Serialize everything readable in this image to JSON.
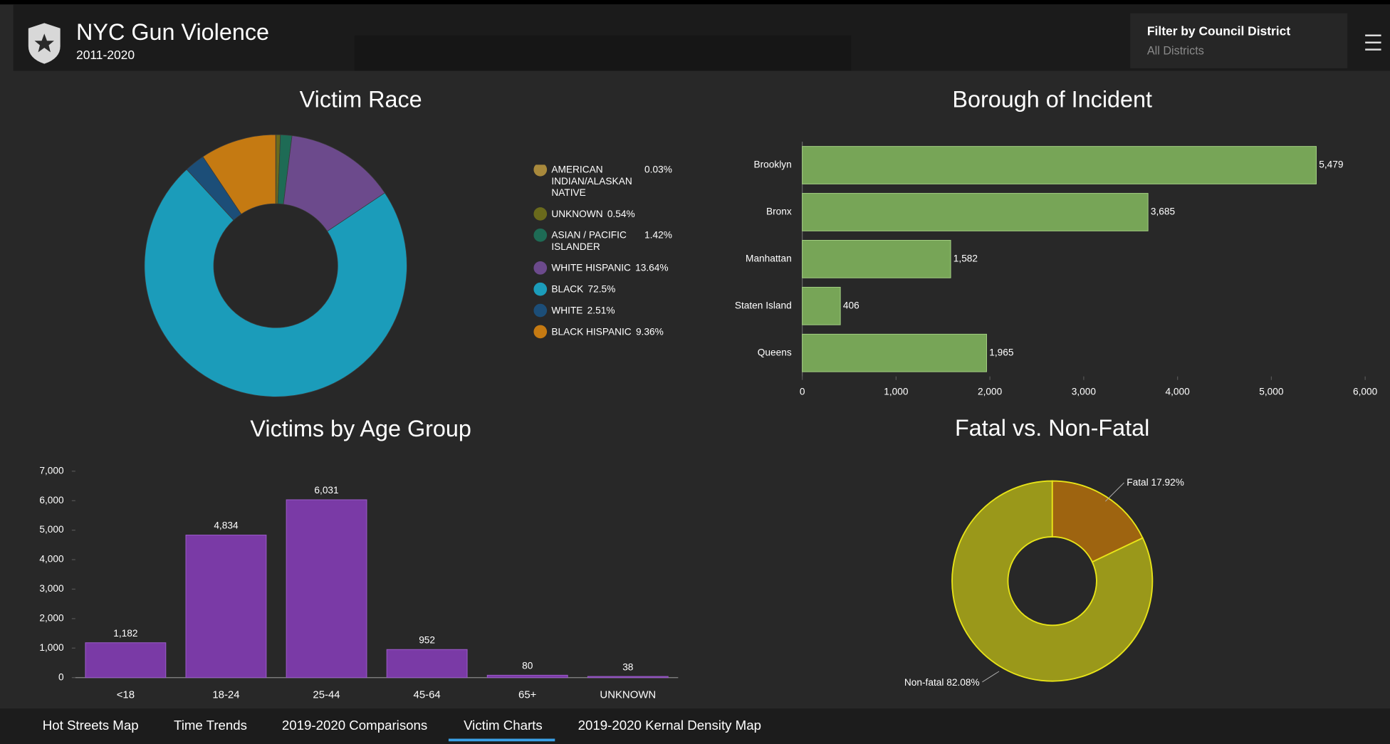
{
  "header": {
    "title": "NYC Gun Violence",
    "subtitle": "2011-2020"
  },
  "filter": {
    "label": "Filter by Council District",
    "value": "All Districts"
  },
  "tabs": [
    "Hot Streets Map",
    "Time Trends",
    "2019-2020 Comparisons",
    "Victim Charts",
    "2019-2020 Kernal Density Map"
  ],
  "chart_data": [
    {
      "type": "pie",
      "title": "Victim Race",
      "legend": "right",
      "categories": [
        "AMERICAN INDIAN/ALASKAN NATIVE",
        "UNKNOWN",
        "ASIAN / PACIFIC ISLANDER",
        "WHITE HISPANIC",
        "BLACK",
        "WHITE",
        "BLACK HISPANIC"
      ],
      "values": [
        0.03,
        0.54,
        1.42,
        13.64,
        72.5,
        2.51,
        9.36
      ],
      "value_labels": [
        "0.03%",
        "0.54%",
        "1.42%",
        "13.64%",
        "72.5%",
        "2.51%",
        "9.36%"
      ],
      "colors": [
        "#a8893c",
        "#6a6a1c",
        "#1e6b55",
        "#6c4a8c",
        "#1b9cba",
        "#1c4e78",
        "#c57a12"
      ]
    },
    {
      "type": "bar",
      "orientation": "horizontal",
      "title": "Borough of Incident",
      "categories": [
        "Brooklyn",
        "Bronx",
        "Manhattan",
        "Staten Island",
        "Queens"
      ],
      "values": [
        5479,
        3685,
        1582,
        406,
        1965
      ],
      "value_labels": [
        "5,479",
        "3,685",
        "1,582",
        "406",
        "1,965"
      ],
      "color": "#77a557",
      "xlim": [
        0,
        6000
      ],
      "xticks": [
        0,
        {
          "value": 1000,
          "label": "1,000"
        },
        {
          "value": 2000,
          "label": "2,000"
        },
        {
          "value": 3000,
          "label": "3,000"
        },
        {
          "value": 4000,
          "label": "4,000"
        },
        {
          "value": 5000,
          "label": "5,000"
        },
        {
          "value": 6000,
          "label": "6,000"
        }
      ]
    },
    {
      "type": "bar",
      "title": "Victims by Age Group",
      "categories": [
        "<18",
        "18-24",
        "25-44",
        "45-64",
        "65+",
        "UNKNOWN"
      ],
      "values": [
        1182,
        4834,
        6031,
        952,
        80,
        38
      ],
      "value_labels": [
        "1,182",
        "4,834",
        "6,031",
        "952",
        "80",
        "38"
      ],
      "color": "#7a3aa6",
      "ylim": [
        0,
        7000
      ],
      "yticks": [
        0,
        {
          "value": 1000,
          "label": "1,000"
        },
        {
          "value": 2000,
          "label": "2,000"
        },
        {
          "value": 3000,
          "label": "3,000"
        },
        {
          "value": 4000,
          "label": "4,000"
        },
        {
          "value": 5000,
          "label": "5,000"
        },
        {
          "value": 6000,
          "label": "6,000"
        },
        {
          "value": 7000,
          "label": "7,000"
        }
      ]
    },
    {
      "type": "pie",
      "title": "Fatal vs. Non-Fatal",
      "legend": "labels",
      "categories": [
        "Fatal",
        "Non-fatal"
      ],
      "values": [
        17.92,
        82.08
      ],
      "value_labels": [
        "17.92%",
        "82.08%"
      ],
      "colors": [
        "#9e6410",
        "#9a981a"
      ],
      "stroke": "#e8e418"
    }
  ]
}
